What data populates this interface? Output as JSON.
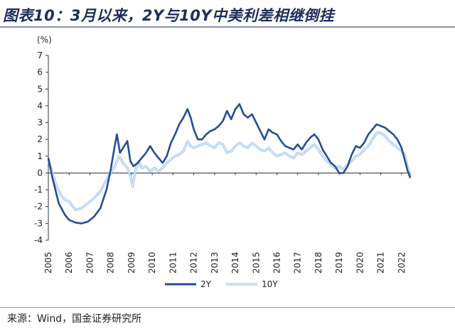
{
  "header": {
    "title": "图表10：3月以来，2Y与10Y中美利差相继倒挂"
  },
  "footer": {
    "source": "来源：Wind，国金证券研究所"
  },
  "chart_data": {
    "type": "line",
    "title": "图表10：3月以来，2Y与10Y中美利差相继倒挂",
    "ylabel": "(%)",
    "ylim": [
      -4,
      7
    ],
    "yticks": [
      "7",
      "6",
      "5",
      "4",
      "3",
      "2",
      "1",
      "0",
      "-1",
      "-2",
      "-3",
      "-4"
    ],
    "xticks": [
      "2005",
      "2006",
      "2007",
      "2008",
      "2009",
      "2010",
      "2011",
      "2012",
      "2013",
      "2014",
      "2015",
      "2016",
      "2017",
      "2018",
      "2019",
      "2020",
      "2021",
      "2022"
    ],
    "xlim": [
      2005,
      2022.45
    ],
    "legend_position": "bottom-center",
    "grid": false,
    "series": [
      {
        "name": "2Y",
        "color": "#264c9a",
        "points": [
          [
            2005.0,
            0.9
          ],
          [
            2005.2,
            -0.3
          ],
          [
            2005.5,
            -1.8
          ],
          [
            2005.8,
            -2.5
          ],
          [
            2006.0,
            -2.8
          ],
          [
            2006.3,
            -2.95
          ],
          [
            2006.6,
            -3.0
          ],
          [
            2006.9,
            -2.9
          ],
          [
            2007.2,
            -2.6
          ],
          [
            2007.5,
            -2.1
          ],
          [
            2007.8,
            -1.0
          ],
          [
            2008.0,
            0.2
          ],
          [
            2008.15,
            1.3
          ],
          [
            2008.3,
            2.3
          ],
          [
            2008.45,
            1.2
          ],
          [
            2008.6,
            1.5
          ],
          [
            2008.8,
            1.9
          ],
          [
            2008.95,
            0.7
          ],
          [
            2009.1,
            0.4
          ],
          [
            2009.3,
            0.6
          ],
          [
            2009.5,
            0.9
          ],
          [
            2009.7,
            1.2
          ],
          [
            2009.9,
            1.6
          ],
          [
            2010.1,
            1.2
          ],
          [
            2010.3,
            0.9
          ],
          [
            2010.5,
            0.6
          ],
          [
            2010.7,
            1.0
          ],
          [
            2010.9,
            1.8
          ],
          [
            2011.1,
            2.3
          ],
          [
            2011.3,
            2.9
          ],
          [
            2011.5,
            3.3
          ],
          [
            2011.7,
            3.8
          ],
          [
            2011.85,
            3.3
          ],
          [
            2012.0,
            2.6
          ],
          [
            2012.2,
            2.0
          ],
          [
            2012.4,
            2.0
          ],
          [
            2012.6,
            2.3
          ],
          [
            2012.8,
            2.5
          ],
          [
            2013.0,
            2.6
          ],
          [
            2013.2,
            2.8
          ],
          [
            2013.4,
            3.1
          ],
          [
            2013.6,
            3.7
          ],
          [
            2013.8,
            3.2
          ],
          [
            2014.0,
            3.8
          ],
          [
            2014.2,
            4.1
          ],
          [
            2014.4,
            3.5
          ],
          [
            2014.6,
            3.3
          ],
          [
            2014.8,
            3.5
          ],
          [
            2015.0,
            3.0
          ],
          [
            2015.2,
            2.5
          ],
          [
            2015.4,
            2.0
          ],
          [
            2015.6,
            2.6
          ],
          [
            2015.8,
            2.4
          ],
          [
            2016.0,
            2.3
          ],
          [
            2016.2,
            1.9
          ],
          [
            2016.4,
            1.6
          ],
          [
            2016.6,
            1.5
          ],
          [
            2016.8,
            1.4
          ],
          [
            2017.0,
            1.7
          ],
          [
            2017.2,
            1.4
          ],
          [
            2017.4,
            1.8
          ],
          [
            2017.6,
            2.1
          ],
          [
            2017.8,
            2.3
          ],
          [
            2018.0,
            2.0
          ],
          [
            2018.2,
            1.4
          ],
          [
            2018.4,
            1.0
          ],
          [
            2018.6,
            0.6
          ],
          [
            2018.8,
            0.4
          ],
          [
            2019.0,
            0.0
          ],
          [
            2019.2,
            0.0
          ],
          [
            2019.4,
            0.4
          ],
          [
            2019.6,
            1.1
          ],
          [
            2019.8,
            1.6
          ],
          [
            2020.0,
            1.5
          ],
          [
            2020.2,
            1.8
          ],
          [
            2020.4,
            2.3
          ],
          [
            2020.6,
            2.6
          ],
          [
            2020.8,
            2.9
          ],
          [
            2021.0,
            2.8
          ],
          [
            2021.2,
            2.7
          ],
          [
            2021.4,
            2.5
          ],
          [
            2021.6,
            2.3
          ],
          [
            2021.8,
            2.0
          ],
          [
            2022.0,
            1.5
          ],
          [
            2022.15,
            0.8
          ],
          [
            2022.3,
            0.1
          ],
          [
            2022.42,
            -0.3
          ]
        ]
      },
      {
        "name": "10Y",
        "color": "#9fc4ec",
        "points": [
          [
            2005.0,
            0.8
          ],
          [
            2005.2,
            0.0
          ],
          [
            2005.4,
            -0.8
          ],
          [
            2005.6,
            -1.3
          ],
          [
            2005.8,
            -1.6
          ],
          [
            2006.0,
            -1.7
          ],
          [
            2006.3,
            -2.2
          ],
          [
            2006.6,
            -2.1
          ],
          [
            2006.9,
            -1.8
          ],
          [
            2007.2,
            -1.5
          ],
          [
            2007.5,
            -1.1
          ],
          [
            2007.8,
            -0.4
          ],
          [
            2008.0,
            0.0
          ],
          [
            2008.2,
            0.4
          ],
          [
            2008.4,
            1.0
          ],
          [
            2008.6,
            0.6
          ],
          [
            2008.8,
            0.3
          ],
          [
            2008.95,
            -0.2
          ],
          [
            2009.05,
            -0.8
          ],
          [
            2009.2,
            0.2
          ],
          [
            2009.35,
            0.7
          ],
          [
            2009.5,
            0.3
          ],
          [
            2009.7,
            0.4
          ],
          [
            2009.9,
            0.1
          ],
          [
            2010.1,
            0.3
          ],
          [
            2010.3,
            0.1
          ],
          [
            2010.5,
            0.3
          ],
          [
            2010.7,
            0.6
          ],
          [
            2010.9,
            0.8
          ],
          [
            2011.1,
            1.0
          ],
          [
            2011.3,
            1.1
          ],
          [
            2011.5,
            1.3
          ],
          [
            2011.7,
            1.9
          ],
          [
            2011.85,
            1.6
          ],
          [
            2012.0,
            1.5
          ],
          [
            2012.2,
            1.6
          ],
          [
            2012.4,
            1.7
          ],
          [
            2012.6,
            1.8
          ],
          [
            2012.8,
            1.6
          ],
          [
            2013.0,
            1.5
          ],
          [
            2013.2,
            1.8
          ],
          [
            2013.4,
            1.7
          ],
          [
            2013.6,
            1.2
          ],
          [
            2013.8,
            1.3
          ],
          [
            2014.0,
            1.6
          ],
          [
            2014.2,
            1.8
          ],
          [
            2014.4,
            1.6
          ],
          [
            2014.6,
            1.5
          ],
          [
            2014.8,
            1.8
          ],
          [
            2015.0,
            1.6
          ],
          [
            2015.2,
            1.4
          ],
          [
            2015.4,
            1.3
          ],
          [
            2015.6,
            1.5
          ],
          [
            2015.8,
            1.2
          ],
          [
            2016.0,
            1.0
          ],
          [
            2016.2,
            1.1
          ],
          [
            2016.4,
            1.2
          ],
          [
            2016.6,
            1.0
          ],
          [
            2016.8,
            0.9
          ],
          [
            2017.0,
            1.2
          ],
          [
            2017.2,
            1.1
          ],
          [
            2017.4,
            1.3
          ],
          [
            2017.6,
            1.5
          ],
          [
            2017.8,
            1.7
          ],
          [
            2018.0,
            1.4
          ],
          [
            2018.2,
            1.0
          ],
          [
            2018.4,
            0.7
          ],
          [
            2018.6,
            0.5
          ],
          [
            2018.8,
            0.3
          ],
          [
            2019.0,
            0.4
          ],
          [
            2019.2,
            0.2
          ],
          [
            2019.4,
            0.5
          ],
          [
            2019.6,
            0.7
          ],
          [
            2019.8,
            1.0
          ],
          [
            2020.0,
            1.1
          ],
          [
            2020.2,
            1.4
          ],
          [
            2020.4,
            1.6
          ],
          [
            2020.6,
            2.0
          ],
          [
            2020.8,
            2.4
          ],
          [
            2021.0,
            2.4
          ],
          [
            2021.2,
            2.2
          ],
          [
            2021.4,
            1.9
          ],
          [
            2021.6,
            1.7
          ],
          [
            2021.8,
            1.5
          ],
          [
            2022.0,
            1.3
          ],
          [
            2022.15,
            1.1
          ],
          [
            2022.3,
            0.3
          ],
          [
            2022.42,
            -0.2
          ]
        ]
      }
    ]
  }
}
